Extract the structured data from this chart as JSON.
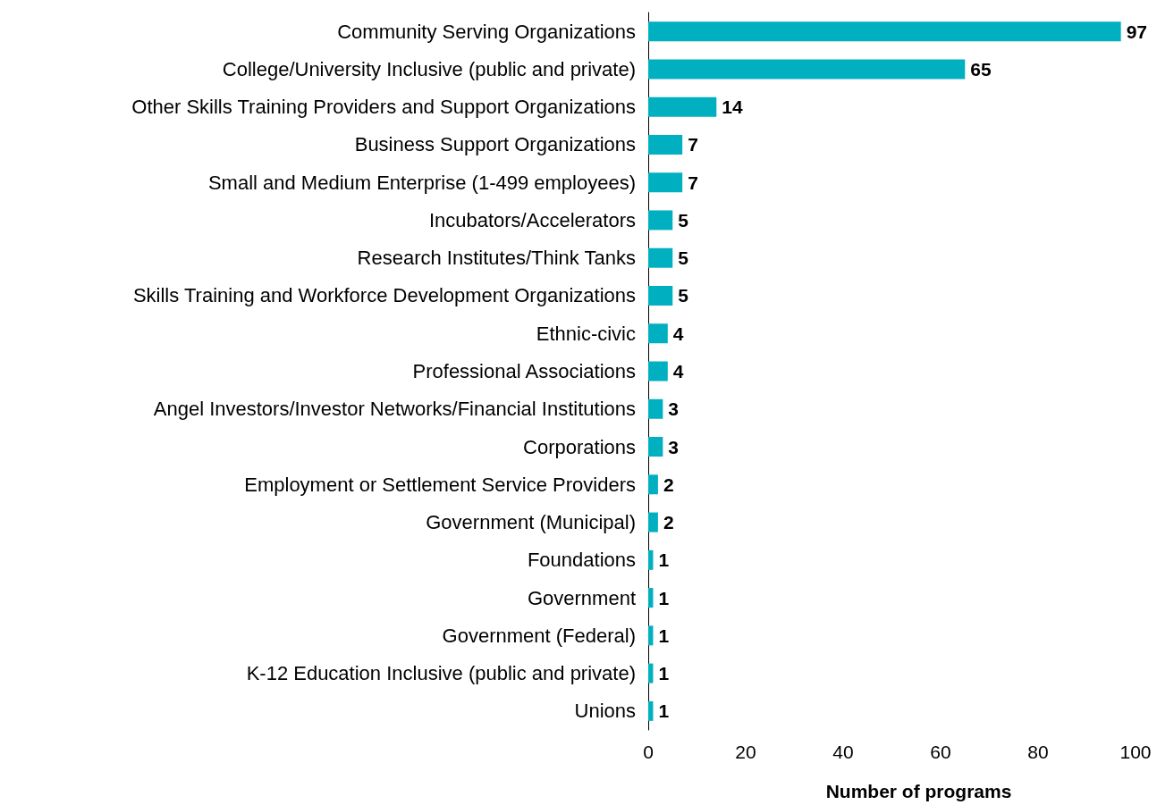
{
  "chart_data": {
    "type": "bar",
    "orientation": "horizontal",
    "xlabel": "Number of programs",
    "categories": [
      "Community Serving Organizations",
      "College/University Inclusive (public and private)",
      "Other Skills Training Providers and Support Organizations",
      "Business Support Organizations",
      "Small and Medium Enterprise (1-499 employees)",
      "Incubators/Accelerators",
      "Research Institutes/Think Tanks",
      "Skills Training and Workforce Development Organizations",
      "Ethnic-civic",
      "Professional Associations",
      "Angel Investors/Investor Networks/Financial Institutions",
      "Corporations",
      "Employment or Settlement Service Providers",
      "Government (Municipal)",
      "Foundations",
      "Government",
      "Government (Federal)",
      "K-12 Education Inclusive (public and private)",
      "Unions"
    ],
    "values": [
      97,
      65,
      14,
      7,
      7,
      5,
      5,
      5,
      4,
      4,
      3,
      3,
      2,
      2,
      1,
      1,
      1,
      1,
      1
    ],
    "color": "#00b0c0",
    "xlim": [
      0,
      100
    ],
    "xticks": [
      0,
      20,
      40,
      60,
      80,
      100
    ],
    "grid": false,
    "data_labels": true
  }
}
